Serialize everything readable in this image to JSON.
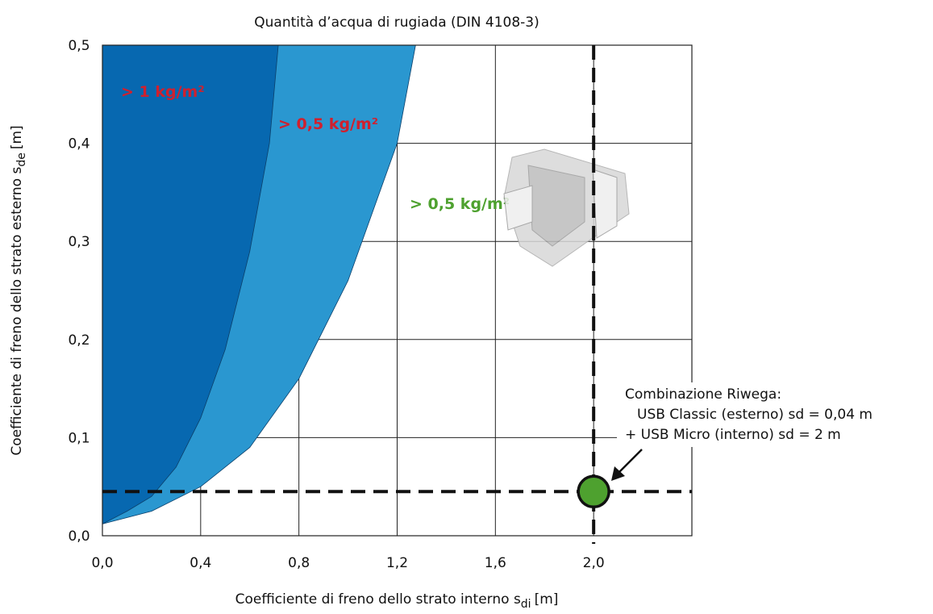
{
  "chart_data": {
    "type": "area",
    "title": "Quantità d’acqua di rugiada (DIN 4108-3)",
    "xlabel": {
      "text": "Coefficiente di freno dello strato interno s",
      "sub": "di",
      "unit": "[m]"
    },
    "ylabel": {
      "text": "Coefficiente di freno dello strato esterno s",
      "sub": "de",
      "unit": "[m]"
    },
    "xlim": [
      0,
      2.4
    ],
    "ylim": [
      0,
      0.5
    ],
    "xticks": [
      {
        "value": 0,
        "label": "0,0"
      },
      {
        "value": 0.4,
        "label": "0,4"
      },
      {
        "value": 0.8,
        "label": "0,8"
      },
      {
        "value": 1.2,
        "label": "1,2"
      },
      {
        "value": 1.6,
        "label": "1,6"
      },
      {
        "value": 2.0,
        "label": "2,0"
      }
    ],
    "yticks": [
      {
        "value": 0,
        "label": "0,0"
      },
      {
        "value": 0.1,
        "label": "0,1"
      },
      {
        "value": 0.2,
        "label": "0,2"
      },
      {
        "value": 0.3,
        "label": "0,3"
      },
      {
        "value": 0.4,
        "label": "0,4"
      },
      {
        "value": 0.5,
        "label": "0,5"
      }
    ],
    "grid": true,
    "series": [
      {
        "color": "#0768b0",
        "x": [
          0,
          0.1,
          0.2,
          0.3,
          0.4,
          0.5,
          0.6,
          0.68,
          0.716
        ],
        "values": [
          0.012,
          0.025,
          0.04,
          0.07,
          0.12,
          0.19,
          0.29,
          0.4,
          0.5
        ]
      },
      {
        "color": "#2a97d0",
        "x": [
          0,
          0.2,
          0.4,
          0.6,
          0.8,
          1.0,
          1.2,
          1.275
        ],
        "values": [
          0.012,
          0.025,
          0.05,
          0.09,
          0.16,
          0.26,
          0.4,
          0.5
        ]
      }
    ],
    "point": {
      "x": 2.0,
      "y": 0.045,
      "color": "#4ea12f"
    },
    "region_labels": [
      {
        "text": "> 1 kg/m²",
        "color": "#d0202e"
      },
      {
        "text": "> 0,5 kg/m²",
        "color": "#d0202e"
      },
      {
        "text": "> 0,5 kg/m²",
        "color": "#4ea12f"
      }
    ],
    "annotation": [
      "Combinazione Riwega:",
      "USB Classic (esterno) sd = 0,04 m",
      "+ USB Micro (interno) sd = 2 m"
    ]
  }
}
